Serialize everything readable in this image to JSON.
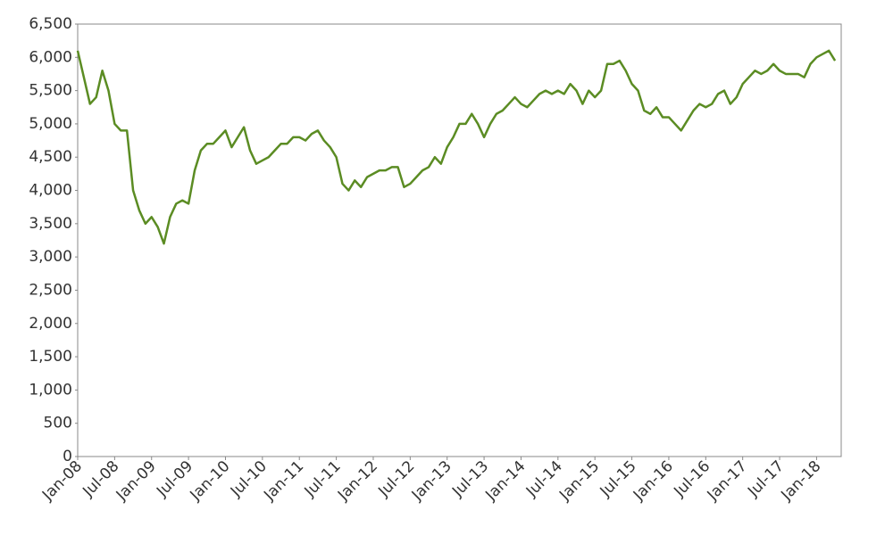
{
  "chart_data": {
    "type": "line",
    "color": "#5b8c23",
    "x": [
      "2008-01",
      "2008-02",
      "2008-03",
      "2008-04",
      "2008-05",
      "2008-06",
      "2008-07",
      "2008-08",
      "2008-09",
      "2008-10",
      "2008-11",
      "2008-12",
      "2009-01",
      "2009-02",
      "2009-03",
      "2009-04",
      "2009-05",
      "2009-06",
      "2009-07",
      "2009-08",
      "2009-09",
      "2009-10",
      "2009-11",
      "2009-12",
      "2010-01",
      "2010-02",
      "2010-03",
      "2010-04",
      "2010-05",
      "2010-06",
      "2010-07",
      "2010-08",
      "2010-09",
      "2010-10",
      "2010-11",
      "2010-12",
      "2011-01",
      "2011-02",
      "2011-03",
      "2011-04",
      "2011-05",
      "2011-06",
      "2011-07",
      "2011-08",
      "2011-09",
      "2011-10",
      "2011-11",
      "2011-12",
      "2012-01",
      "2012-02",
      "2012-03",
      "2012-04",
      "2012-05",
      "2012-06",
      "2012-07",
      "2012-08",
      "2012-09",
      "2012-10",
      "2012-11",
      "2012-12",
      "2013-01",
      "2013-02",
      "2013-03",
      "2013-04",
      "2013-05",
      "2013-06",
      "2013-07",
      "2013-08",
      "2013-09",
      "2013-10",
      "2013-11",
      "2013-12",
      "2014-01",
      "2014-02",
      "2014-03",
      "2014-04",
      "2014-05",
      "2014-06",
      "2014-07",
      "2014-08",
      "2014-09",
      "2014-10",
      "2014-11",
      "2014-12",
      "2015-01",
      "2015-02",
      "2015-03",
      "2015-04",
      "2015-05",
      "2015-06",
      "2015-07",
      "2015-08",
      "2015-09",
      "2015-10",
      "2015-11",
      "2015-12",
      "2016-01",
      "2016-02",
      "2016-03",
      "2016-04",
      "2016-05",
      "2016-06",
      "2016-07",
      "2016-08",
      "2016-09",
      "2016-10",
      "2016-11",
      "2016-12",
      "2017-01",
      "2017-02",
      "2017-03",
      "2017-04",
      "2017-05",
      "2017-06",
      "2017-07",
      "2017-08",
      "2017-09",
      "2017-10",
      "2017-11",
      "2017-12",
      "2018-01",
      "2018-02",
      "2018-03",
      "2018-04"
    ],
    "values": [
      6100,
      5700,
      5300,
      5400,
      5800,
      5500,
      5000,
      4900,
      4900,
      4000,
      3700,
      3500,
      3600,
      3450,
      3200,
      3600,
      3800,
      3850,
      3800,
      4300,
      4600,
      4700,
      4700,
      4800,
      4900,
      4650,
      4800,
      4950,
      4600,
      4400,
      4450,
      4500,
      4600,
      4700,
      4700,
      4800,
      4800,
      4750,
      4850,
      4900,
      4750,
      4650,
      4500,
      4100,
      4000,
      4150,
      4050,
      4200,
      4250,
      4300,
      4300,
      4350,
      4350,
      4050,
      4100,
      4200,
      4300,
      4350,
      4500,
      4400,
      4650,
      4800,
      5000,
      5000,
      5150,
      5000,
      4800,
      5000,
      5150,
      5200,
      5300,
      5400,
      5300,
      5250,
      5350,
      5450,
      5500,
      5450,
      5500,
      5450,
      5600,
      5500,
      5300,
      5500,
      5400,
      5500,
      5900,
      5900,
      5950,
      5800,
      5600,
      5500,
      5200,
      5150,
      5250,
      5100,
      5100,
      5000,
      4900,
      5050,
      5200,
      5300,
      5250,
      5300,
      5450,
      5500,
      5300,
      5400,
      5600,
      5700,
      5800,
      5750,
      5800,
      5900,
      5800,
      5750,
      5750,
      5750,
      5700,
      5900,
      6000,
      6050,
      6100,
      5950
    ],
    "xlim": [
      "2008-01",
      "2018-05"
    ],
    "xticks": [
      {
        "value": "2008-01",
        "label": "Jan-08"
      },
      {
        "value": "2008-07",
        "label": "Jul-08"
      },
      {
        "value": "2009-01",
        "label": "Jan-09"
      },
      {
        "value": "2009-07",
        "label": "Jul-09"
      },
      {
        "value": "2010-01",
        "label": "Jan-10"
      },
      {
        "value": "2010-07",
        "label": "Jul-10"
      },
      {
        "value": "2011-01",
        "label": "Jan-11"
      },
      {
        "value": "2011-07",
        "label": "Jul-11"
      },
      {
        "value": "2012-01",
        "label": "Jan-12"
      },
      {
        "value": "2012-07",
        "label": "Jul-12"
      },
      {
        "value": "2013-01",
        "label": "Jan-13"
      },
      {
        "value": "2013-07",
        "label": "Jul-13"
      },
      {
        "value": "2014-01",
        "label": "Jan-14"
      },
      {
        "value": "2014-07",
        "label": "Jul-14"
      },
      {
        "value": "2015-01",
        "label": "Jan-15"
      },
      {
        "value": "2015-07",
        "label": "Jul-15"
      },
      {
        "value": "2016-01",
        "label": "Jan-16"
      },
      {
        "value": "2016-07",
        "label": "Jul-16"
      },
      {
        "value": "2017-01",
        "label": "Jan-17"
      },
      {
        "value": "2017-07",
        "label": "Jul-17"
      },
      {
        "value": "2018-01",
        "label": "Jan-18"
      }
    ],
    "ylim": [
      0,
      6500
    ],
    "yticks": [
      0,
      500,
      {
        "value": 1000,
        "label": "1,000"
      },
      {
        "value": 1500,
        "label": "1,500"
      },
      {
        "value": 2000,
        "label": "2,000"
      },
      {
        "value": 2500,
        "label": "2,500"
      },
      {
        "value": 3000,
        "label": "3,000"
      },
      {
        "value": 3500,
        "label": "3,500"
      },
      {
        "value": 4000,
        "label": "4,000"
      },
      {
        "value": 4500,
        "label": "4,500"
      },
      {
        "value": 5000,
        "label": "5,000"
      },
      {
        "value": 5500,
        "label": "5,500"
      },
      {
        "value": 6000,
        "label": "6,000"
      },
      {
        "value": 6500,
        "label": "6,500"
      }
    ]
  }
}
